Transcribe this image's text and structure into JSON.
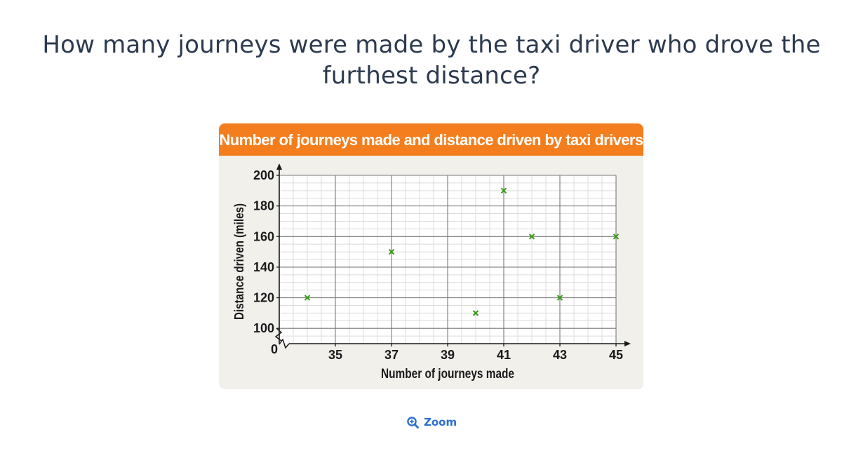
{
  "question": {
    "line1": "How many journeys were made by the taxi driver who drove the",
    "line2": "furthest distance?"
  },
  "zoom": {
    "label": "Zoom",
    "icon": "zoom-in-icon"
  },
  "colors": {
    "header": "#f47e1d",
    "card": "#f2f0eb",
    "marker": "#3a9a1a",
    "link": "#2b6fd1"
  },
  "chart_data": {
    "type": "scatter",
    "title": "Number of journeys made and distance driven by taxi drivers",
    "xlabel": "Number of journeys made",
    "ylabel": "Distance driven (miles)",
    "xlim": [
      33,
      45
    ],
    "ylim": [
      90,
      200
    ],
    "x_ticks": [
      35,
      37,
      39,
      41,
      43,
      45
    ],
    "y_ticks": [
      100,
      120,
      140,
      160,
      180,
      200
    ],
    "origin_label": "0",
    "axis_break": true,
    "grid": true,
    "points": [
      {
        "x": 34,
        "y": 120
      },
      {
        "x": 37,
        "y": 150
      },
      {
        "x": 40,
        "y": 110
      },
      {
        "x": 41,
        "y": 190
      },
      {
        "x": 42,
        "y": 160
      },
      {
        "x": 43,
        "y": 120
      },
      {
        "x": 45,
        "y": 160
      }
    ]
  }
}
